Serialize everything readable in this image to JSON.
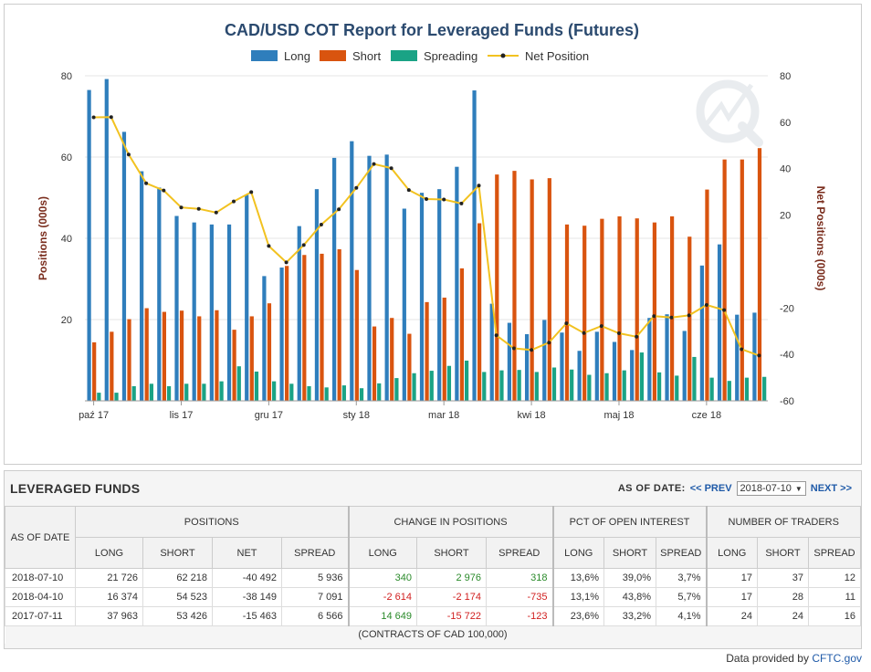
{
  "chart_data": {
    "type": "bar",
    "title": "CAD/USD COT Report for Leveraged Funds (Futures)",
    "ylabel": "Positions (000s)",
    "y2label": "Net Positions (000s)",
    "ylim": [
      0,
      80
    ],
    "y2lim": [
      -60,
      80
    ],
    "yticks": [
      "20",
      "40",
      "60",
      "80"
    ],
    "y2ticks": [
      "-60",
      "-40",
      "-20",
      "20",
      "40",
      "60",
      "80"
    ],
    "xtick_labels": [
      "paź 17",
      "lis 17",
      "gru 17",
      "sty 18",
      "mar 18",
      "kwi 18",
      "maj 18",
      "cze 18"
    ],
    "legend_placement": "top-center",
    "grid": "horizontal",
    "colors": {
      "long": "#2f7ebc",
      "short": "#d9540f",
      "spreading": "#1aa385",
      "net": "#f2c220"
    },
    "series": [
      {
        "name": "Long",
        "type": "bar",
        "values": [
          76.5,
          79.2,
          66.2,
          56.5,
          52.5,
          45.5,
          43.9,
          43.4,
          43.4,
          50.7,
          30.7,
          32.8,
          43.0,
          52.1,
          59.8,
          63.9,
          60.3,
          60.6,
          47.3,
          51.2,
          52.1,
          57.6,
          76.4,
          23.9,
          19.2,
          16.4,
          19.9,
          16.8,
          12.3,
          17.0,
          14.5,
          12.5,
          20.4,
          21.3,
          17.2,
          33.3,
          38.5,
          21.2,
          21.7
        ]
      },
      {
        "name": "Short",
        "type": "bar",
        "values": [
          14.4,
          17.0,
          20.1,
          22.8,
          21.9,
          22.2,
          20.8,
          22.3,
          17.5,
          20.8,
          24.0,
          33.2,
          35.9,
          36.2,
          37.3,
          32.2,
          18.3,
          20.4,
          16.5,
          24.3,
          25.4,
          32.6,
          43.7,
          55.7,
          56.6,
          54.5,
          54.8,
          43.4,
          43.1,
          44.8,
          45.4,
          44.9,
          43.9,
          45.4,
          40.4,
          52.0,
          59.4,
          59.4,
          62.2
        ]
      },
      {
        "name": "Spreading",
        "type": "bar",
        "values": [
          2.0,
          2.0,
          3.6,
          4.2,
          3.6,
          4.2,
          4.2,
          4.8,
          8.5,
          7.2,
          4.8,
          4.2,
          3.6,
          3.3,
          3.8,
          3.1,
          4.3,
          5.6,
          6.8,
          7.4,
          8.6,
          9.9,
          7.1,
          7.5,
          7.6,
          7.1,
          8.2,
          7.7,
          6.4,
          6.8,
          7.5,
          11.9,
          7.0,
          6.2,
          10.8,
          5.7,
          4.9,
          5.7,
          5.9
        ]
      },
      {
        "name": "Net Position",
        "type": "line",
        "values": [
          62.1,
          62.2,
          46.1,
          33.7,
          30.6,
          23.3,
          22.7,
          21.1,
          25.9,
          29.9,
          6.7,
          -0.4,
          7.1,
          15.9,
          22.5,
          31.7,
          42.0,
          40.2,
          30.8,
          26.9,
          26.7,
          25.0,
          32.7,
          -31.8,
          -37.4,
          -38.1,
          -34.9,
          -26.6,
          -30.8,
          -27.8,
          -30.9,
          -32.4,
          -23.5,
          -24.1,
          -23.2,
          -18.7,
          -20.9,
          -37.8,
          -40.5
        ]
      }
    ]
  },
  "panel": {
    "title": "LEVERAGED FUNDS",
    "as_of_label": "AS OF DATE:",
    "prev_label": "<< PREV",
    "selected_date": "2018-07-10",
    "next_label": "NEXT >>"
  },
  "table": {
    "as_of_header": "AS OF DATE",
    "groups": [
      "POSITIONS",
      "CHANGE IN POSITIONS",
      "PCT OF OPEN INTEREST",
      "NUMBER OF TRADERS"
    ],
    "sub": {
      "positions": [
        "LONG",
        "SHORT",
        "NET",
        "SPREAD"
      ],
      "change": [
        "LONG",
        "SHORT",
        "SPREAD"
      ],
      "pct": [
        "LONG",
        "SHORT",
        "SPREAD"
      ],
      "traders": [
        "LONG",
        "SHORT",
        "SPREAD"
      ]
    },
    "rows": [
      {
        "date": "2018-07-10",
        "pos": [
          "21 726",
          "62 218",
          "-40 492",
          "5 936"
        ],
        "chg": [
          "340",
          "2 976",
          "318"
        ],
        "pct": [
          "13,6%",
          "39,0%",
          "3,7%"
        ],
        "trd": [
          "17",
          "37",
          "12"
        ]
      },
      {
        "date": "2018-04-10",
        "pos": [
          "16 374",
          "54 523",
          "-38 149",
          "7 091"
        ],
        "chg": [
          "-2 614",
          "-2 174",
          "-735"
        ],
        "pct": [
          "13,1%",
          "43,8%",
          "5,7%"
        ],
        "trd": [
          "17",
          "28",
          "11"
        ]
      },
      {
        "date": "2017-07-11",
        "pos": [
          "37 963",
          "53 426",
          "-15 463",
          "6 566"
        ],
        "chg": [
          "14 649",
          "-15 722",
          "-123"
        ],
        "pct": [
          "23,6%",
          "33,2%",
          "4,1%"
        ],
        "trd": [
          "24",
          "24",
          "16"
        ]
      }
    ],
    "footnote": "(CONTRACTS OF CAD 100,000)"
  },
  "credit": {
    "prefix": "Data provided by",
    "link": "CFTC.gov"
  }
}
